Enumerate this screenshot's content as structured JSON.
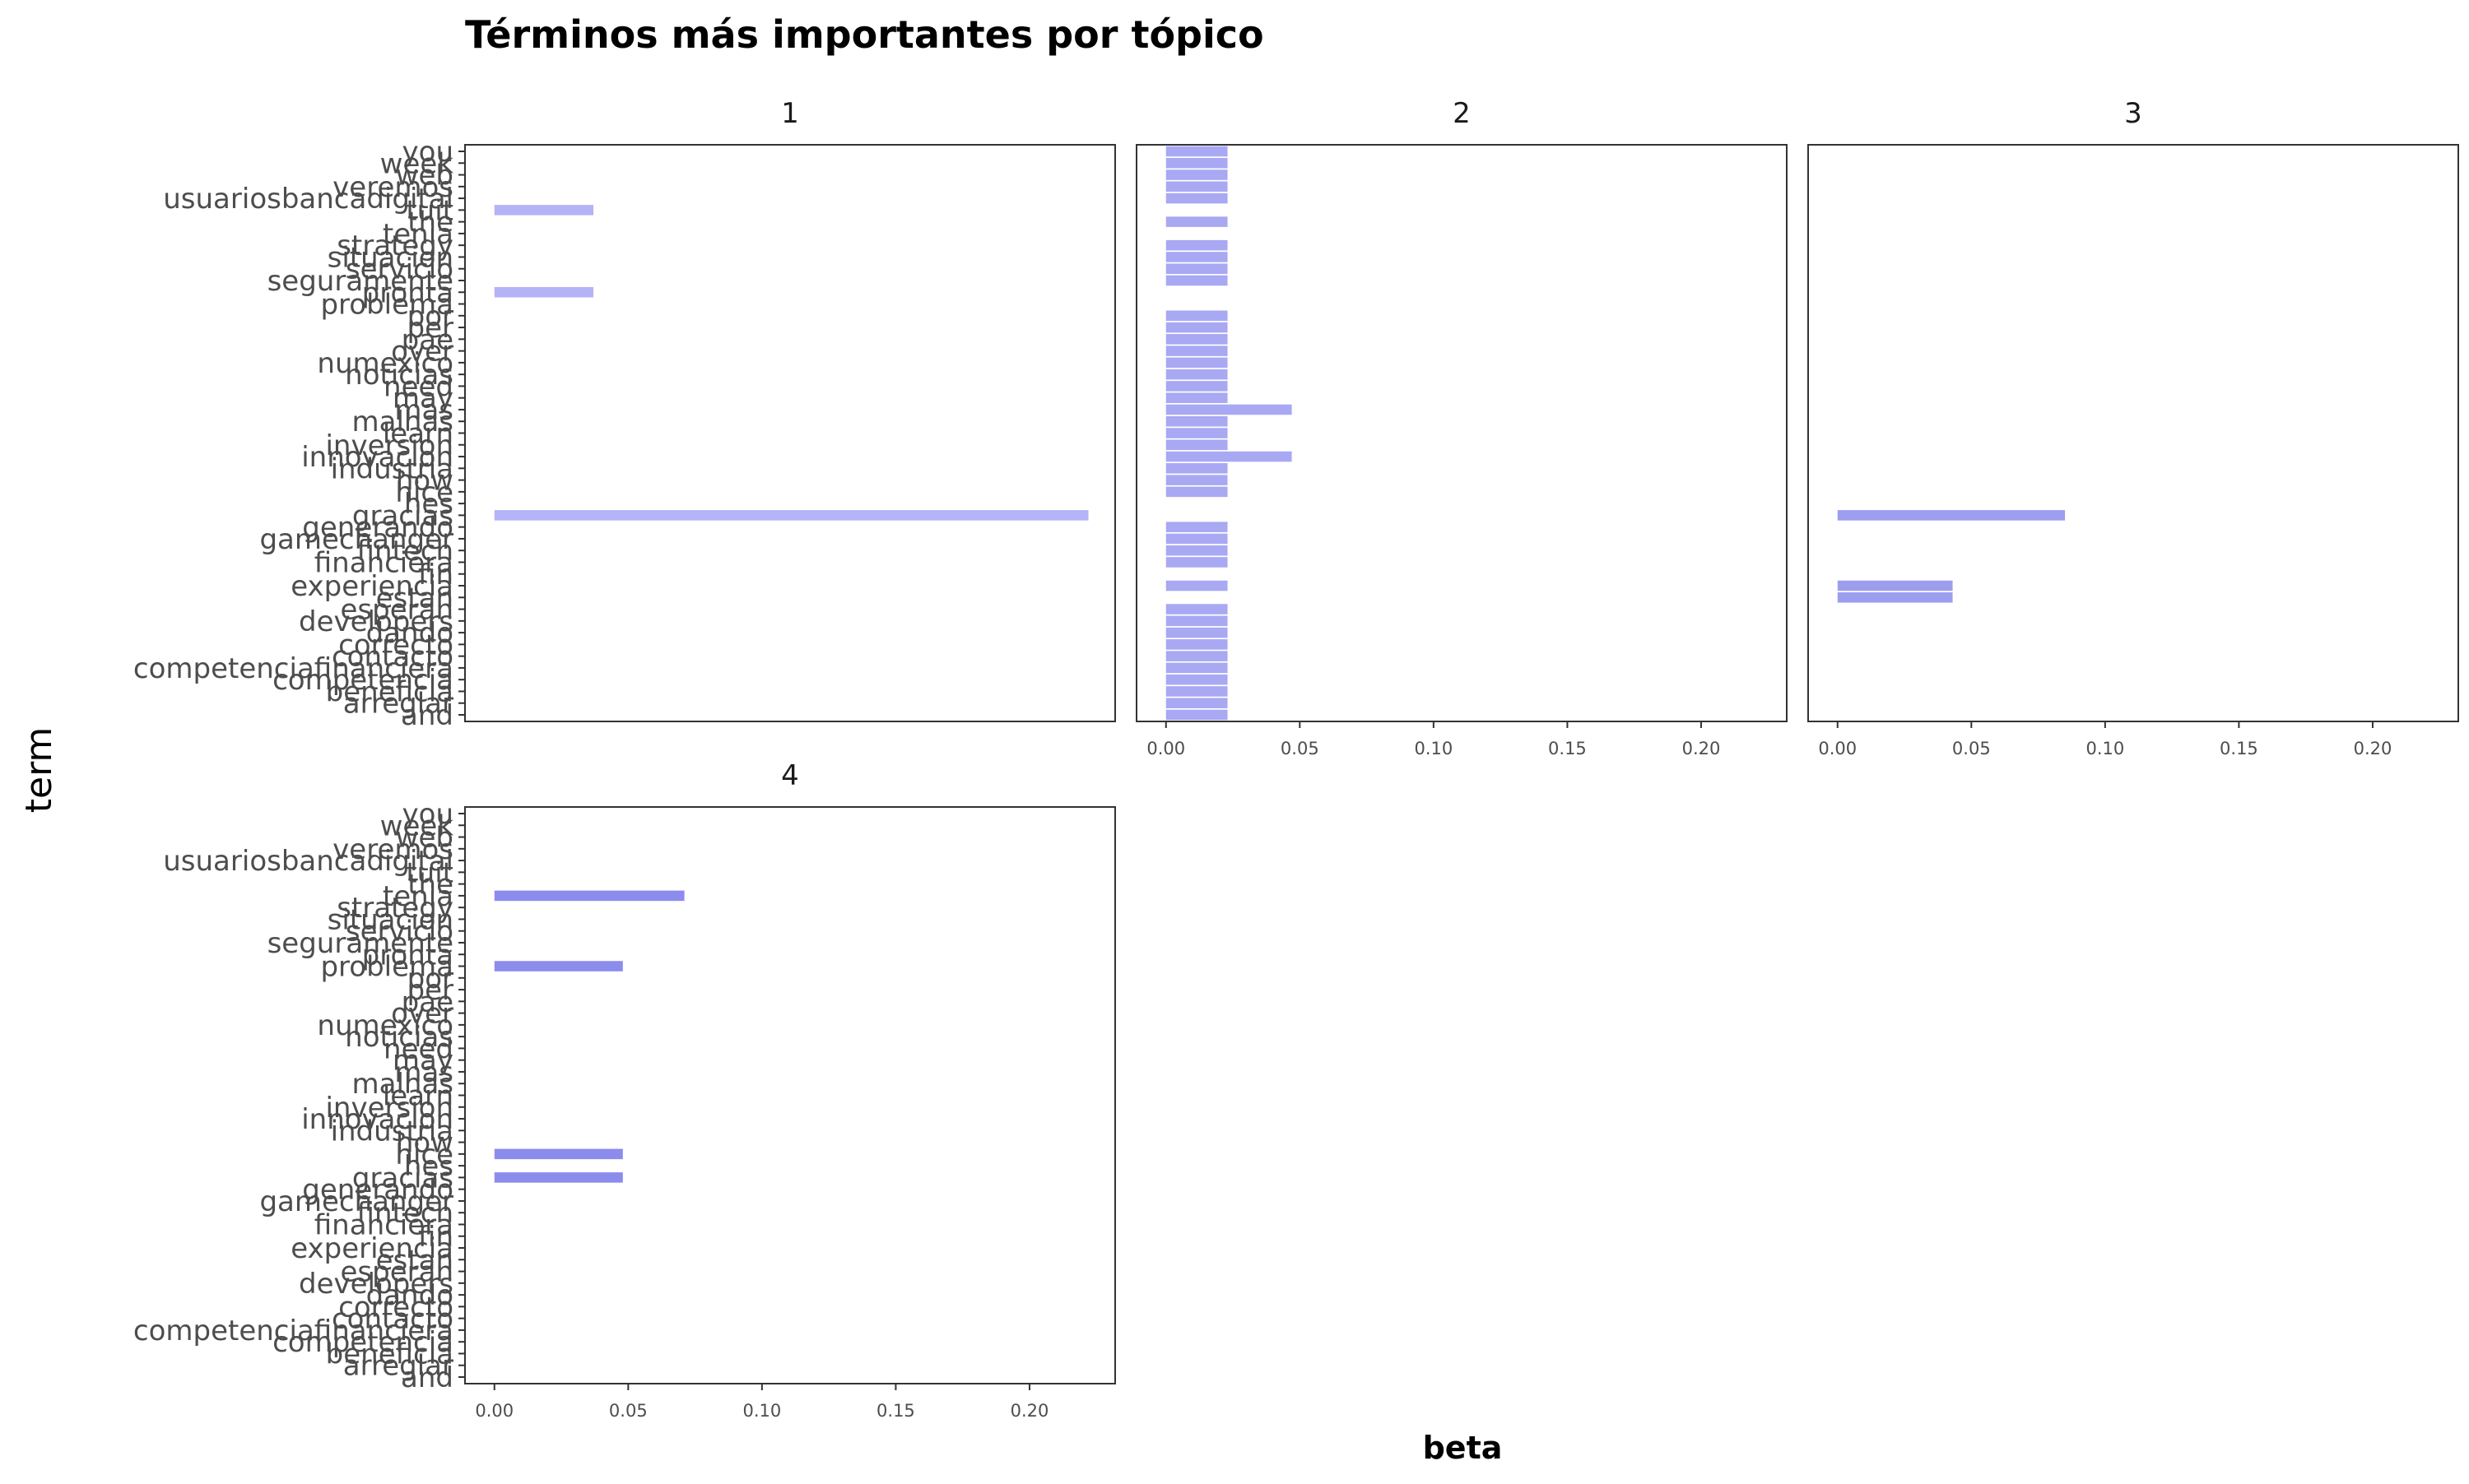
{
  "chart_data": {
    "type": "bar",
    "orientation": "horizontal",
    "faceted": true,
    "title": "Términos más importantes por tópico",
    "xlabel": "beta",
    "ylabel": "term",
    "xlim": [
      -0.011,
      0.232
    ],
    "x_ticks": [
      0.0,
      0.05,
      0.1,
      0.15,
      0.2
    ],
    "x_tick_labels": [
      "0.00",
      "0.05",
      "0.10",
      "0.15",
      "0.20"
    ],
    "grid": false,
    "terms": [
      "and",
      "arreglar",
      "beneficia",
      "competencia",
      "competenciafinanciera",
      "contacto",
      "correcto",
      "dando",
      "developers",
      "esperan",
      "estan",
      "experiencia",
      "fin",
      "financiera",
      "fintech",
      "gamechanger",
      "generando",
      "gracias",
      "hes",
      "hice",
      "how",
      "industria",
      "innovacion",
      "inversion",
      "learn",
      "malhas",
      "mas",
      "may",
      "need",
      "noticias",
      "numexico",
      "over",
      "pae",
      "per",
      "por",
      "problema",
      "pronta",
      "seguramente",
      "servicio",
      "situacion",
      "strategy",
      "tenia",
      "the",
      "tuit",
      "usuariosbancadigital",
      "veremos",
      "web",
      "week",
      "you"
    ],
    "facets": [
      {
        "label": "1",
        "color": "#b3b3f6",
        "bars": [
          {
            "term": "tuit",
            "beta": 0.037
          },
          {
            "term": "pronta",
            "beta": 0.037
          },
          {
            "term": "gracias",
            "beta": 0.222
          }
        ]
      },
      {
        "label": "2",
        "color": "#a8a8f3",
        "bars": [
          {
            "term": "and",
            "beta": 0.023
          },
          {
            "term": "arreglar",
            "beta": 0.023
          },
          {
            "term": "beneficia",
            "beta": 0.023
          },
          {
            "term": "competencia",
            "beta": 0.023
          },
          {
            "term": "competenciafinanciera",
            "beta": 0.023
          },
          {
            "term": "contacto",
            "beta": 0.023
          },
          {
            "term": "correcto",
            "beta": 0.023
          },
          {
            "term": "dando",
            "beta": 0.023
          },
          {
            "term": "developers",
            "beta": 0.023
          },
          {
            "term": "esperan",
            "beta": 0.023
          },
          {
            "term": "experiencia",
            "beta": 0.023
          },
          {
            "term": "financiera",
            "beta": 0.023
          },
          {
            "term": "fintech",
            "beta": 0.023
          },
          {
            "term": "gamechanger",
            "beta": 0.023
          },
          {
            "term": "generando",
            "beta": 0.023
          },
          {
            "term": "hice",
            "beta": 0.023
          },
          {
            "term": "how",
            "beta": 0.023
          },
          {
            "term": "industria",
            "beta": 0.023
          },
          {
            "term": "innovacion",
            "beta": 0.047
          },
          {
            "term": "inversion",
            "beta": 0.023
          },
          {
            "term": "learn",
            "beta": 0.023
          },
          {
            "term": "malhas",
            "beta": 0.023
          },
          {
            "term": "mas",
            "beta": 0.047
          },
          {
            "term": "may",
            "beta": 0.023
          },
          {
            "term": "need",
            "beta": 0.023
          },
          {
            "term": "noticias",
            "beta": 0.023
          },
          {
            "term": "numexico",
            "beta": 0.023
          },
          {
            "term": "over",
            "beta": 0.023
          },
          {
            "term": "pae",
            "beta": 0.023
          },
          {
            "term": "per",
            "beta": 0.023
          },
          {
            "term": "por",
            "beta": 0.023
          },
          {
            "term": "seguramente",
            "beta": 0.023
          },
          {
            "term": "servicio",
            "beta": 0.023
          },
          {
            "term": "situacion",
            "beta": 0.023
          },
          {
            "term": "strategy",
            "beta": 0.023
          },
          {
            "term": "the",
            "beta": 0.023
          },
          {
            "term": "usuariosbancadigital",
            "beta": 0.023
          },
          {
            "term": "veremos",
            "beta": 0.023
          },
          {
            "term": "web",
            "beta": 0.023
          },
          {
            "term": "week",
            "beta": 0.023
          },
          {
            "term": "you",
            "beta": 0.023
          }
        ]
      },
      {
        "label": "3",
        "color": "#9d9df0",
        "bars": [
          {
            "term": "gracias",
            "beta": 0.085
          },
          {
            "term": "experiencia",
            "beta": 0.043
          },
          {
            "term": "estan",
            "beta": 0.043
          }
        ]
      },
      {
        "label": "4",
        "color": "#8c8ced",
        "bars": [
          {
            "term": "tenia",
            "beta": 0.071
          },
          {
            "term": "problema",
            "beta": 0.048
          },
          {
            "term": "hice",
            "beta": 0.048
          },
          {
            "term": "gracias",
            "beta": 0.048
          }
        ]
      }
    ]
  }
}
